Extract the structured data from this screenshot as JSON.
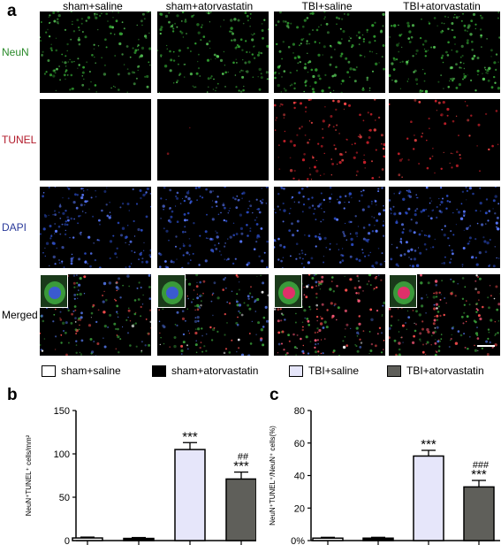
{
  "panel_a": {
    "letter": "a",
    "columns": [
      "sham+saline",
      "sham+atorvastatin",
      "TBI+saline",
      "TBI+atorvastatin"
    ],
    "rows": [
      {
        "label": "NeuN",
        "color": "#2a8a2a"
      },
      {
        "label": "TUNEL",
        "color": "#b21a2a"
      },
      {
        "label": "DAPI",
        "color": "#2a3a9a"
      },
      {
        "label": "Merged",
        "color": "#000000"
      }
    ]
  },
  "legend": [
    {
      "label": "sham+saline",
      "fill": "#ffffff"
    },
    {
      "label": "sham+atorvastatin",
      "fill": "#000000"
    },
    {
      "label": "TBI+saline",
      "fill": "#e6e6fa"
    },
    {
      "label": "TBI+atorvastatin",
      "fill": "#5f5f5a"
    }
  ],
  "chart_data": [
    {
      "type": "bar",
      "letter": "b",
      "categories": [
        "sham+saline",
        "sham+atorvastatin",
        "TBI+saline",
        "TBI+atorvastatin"
      ],
      "values": [
        3,
        2.5,
        105,
        71
      ],
      "errors": [
        1,
        1,
        8,
        8
      ],
      "fills": [
        "#ffffff",
        "#000000",
        "#e6e6fa",
        "#5f5f5a"
      ],
      "annotations": [
        "",
        "",
        "***",
        "***"
      ],
      "annotations2": [
        "",
        "",
        "",
        "##"
      ],
      "ylabel": "NeuN⁺TUNEL⁺ cells/mm²",
      "ylim": [
        0,
        150
      ],
      "yticks": [
        "0",
        "50",
        "100",
        "150"
      ]
    },
    {
      "type": "bar",
      "letter": "c",
      "categories": [
        "sham+saline",
        "sham+atorvastatin",
        "TBI+saline",
        "TBI+atorvastatin"
      ],
      "values": [
        1.5,
        1.5,
        52,
        33
      ],
      "errors": [
        0.5,
        0.5,
        3.5,
        4
      ],
      "fills": [
        "#ffffff",
        "#000000",
        "#e6e6fa",
        "#5f5f5a"
      ],
      "annotations": [
        "",
        "",
        "***",
        "***"
      ],
      "annotations2": [
        "",
        "",
        "",
        "###"
      ],
      "ylabel": "NeuN⁺TUNEL⁺/NeuN⁺ cells(%)",
      "ylim": [
        0,
        80
      ],
      "yticks": [
        "0%",
        "20",
        "40",
        "60",
        "80"
      ]
    }
  ]
}
